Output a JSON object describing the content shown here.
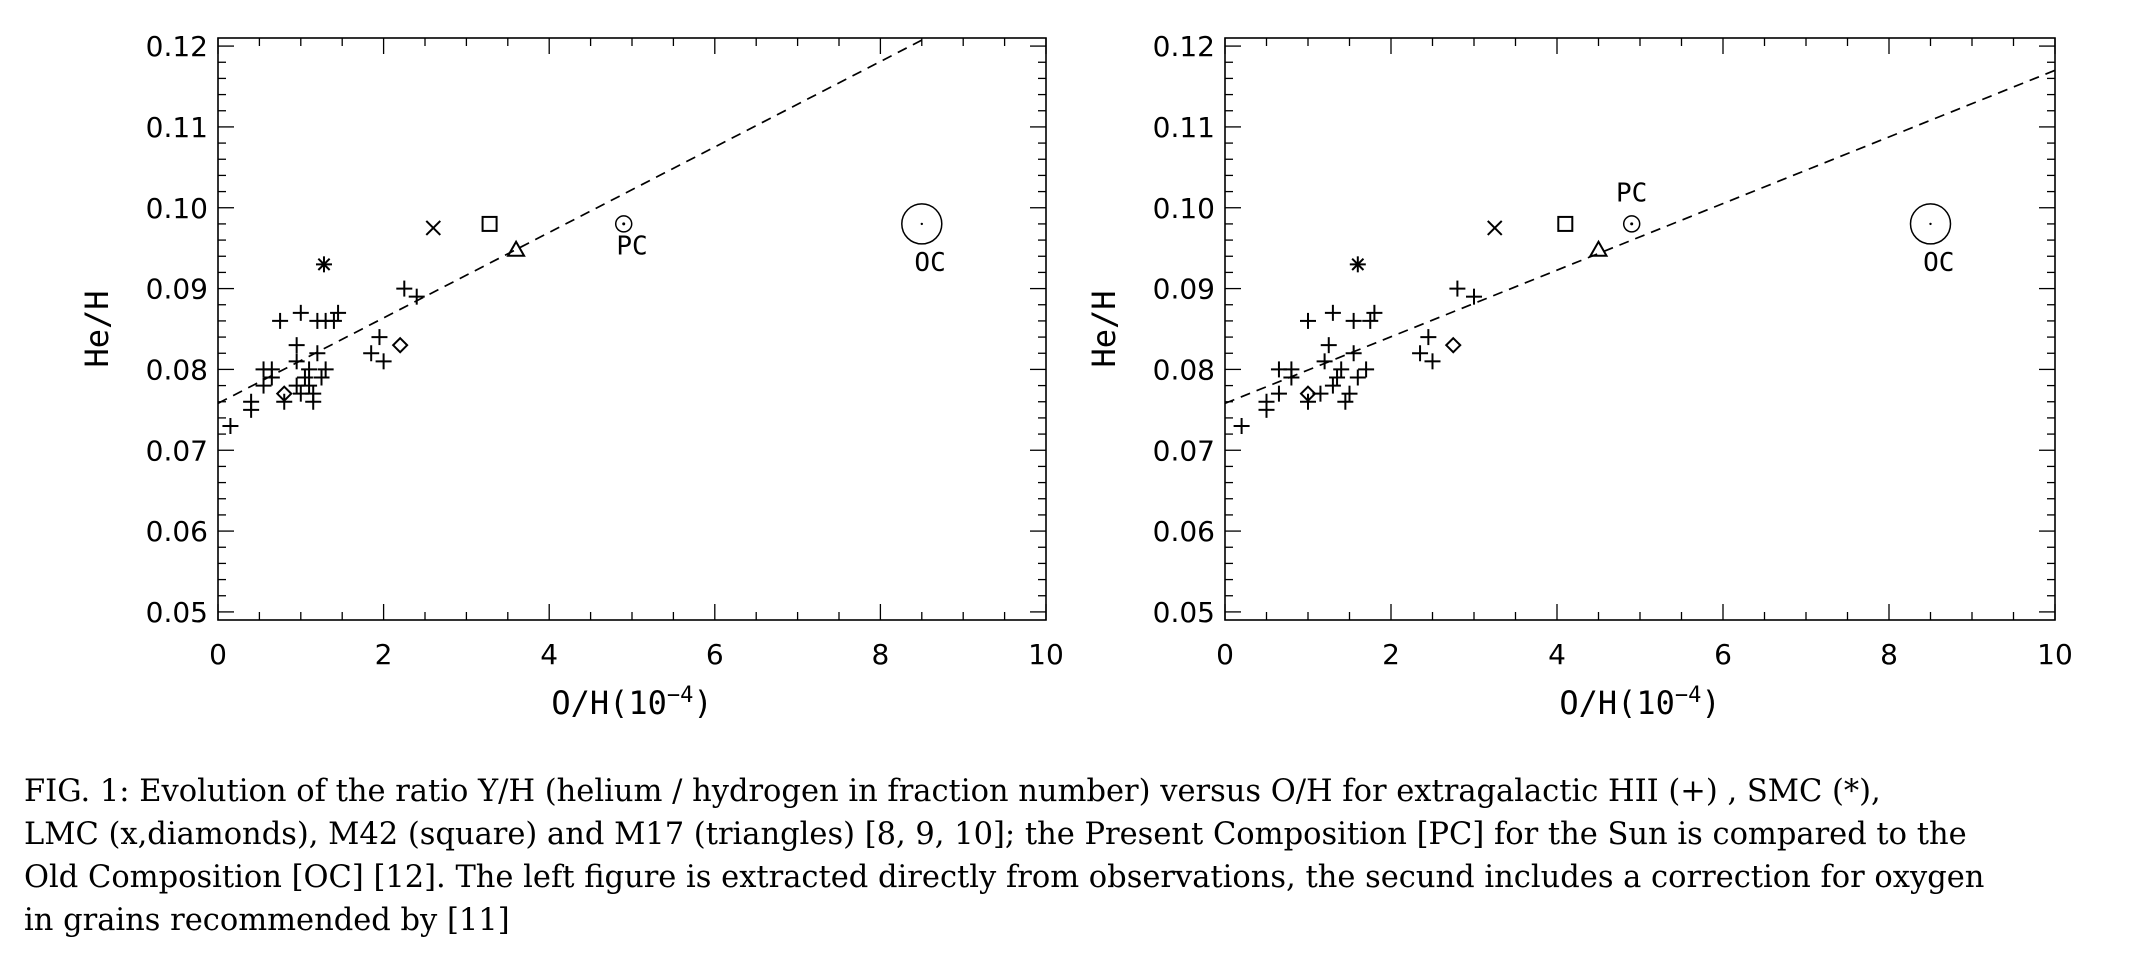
{
  "chart_data": [
    {
      "type": "scatter",
      "panel": "left",
      "xlabel_prefix": "O/H(10",
      "xlabel_exp": "−4",
      "xlabel_suffix": ")",
      "ylabel": "He/H",
      "xlim": [
        0,
        10
      ],
      "ylim": [
        0.049,
        0.121
      ],
      "xticks": [
        "0",
        "2",
        "4",
        "6",
        "8",
        "10"
      ],
      "yticks": [
        "0.05",
        "0.06",
        "0.07",
        "0.08",
        "0.09",
        "0.10",
        "0.11",
        "0.12"
      ],
      "fit_line": {
        "style": "dashed",
        "points": [
          [
            0,
            0.0758
          ],
          [
            8.55,
            0.121
          ]
        ]
      },
      "series": [
        {
          "name": "extragalactic HII",
          "marker": "plus",
          "points": [
            [
              0.15,
              0.073
            ],
            [
              0.4,
              0.075
            ],
            [
              0.4,
              0.076
            ],
            [
              0.55,
              0.078
            ],
            [
              0.55,
              0.08
            ],
            [
              0.65,
              0.079
            ],
            [
              0.65,
              0.08
            ],
            [
              0.75,
              0.086
            ],
            [
              0.8,
              0.076
            ],
            [
              0.95,
              0.078
            ],
            [
              0.95,
              0.081
            ],
            [
              0.95,
              0.083
            ],
            [
              1.0,
              0.087
            ],
            [
              1.0,
              0.077
            ],
            [
              1.05,
              0.079
            ],
            [
              1.1,
              0.08
            ],
            [
              1.1,
              0.078
            ],
            [
              1.15,
              0.076
            ],
            [
              1.15,
              0.077
            ],
            [
              1.2,
              0.082
            ],
            [
              1.2,
              0.086
            ],
            [
              1.25,
              0.079
            ],
            [
              1.3,
              0.08
            ],
            [
              1.3,
              0.086
            ],
            [
              1.4,
              0.086
            ],
            [
              1.45,
              0.087
            ],
            [
              1.85,
              0.082
            ],
            [
              1.95,
              0.084
            ],
            [
              2.0,
              0.081
            ],
            [
              2.25,
              0.09
            ],
            [
              2.4,
              0.089
            ]
          ]
        },
        {
          "name": "SMC",
          "marker": "asterisk",
          "points": [
            [
              1.28,
              0.093
            ]
          ]
        },
        {
          "name": "LMC x",
          "marker": "x",
          "points": [
            [
              2.6,
              0.0975
            ]
          ]
        },
        {
          "name": "LMC diamonds",
          "marker": "diamond",
          "points": [
            [
              0.8,
              0.077
            ],
            [
              2.2,
              0.083
            ]
          ]
        },
        {
          "name": "M42",
          "marker": "square",
          "points": [
            [
              3.28,
              0.098
            ]
          ]
        },
        {
          "name": "M17",
          "marker": "triangle",
          "points": [
            [
              3.6,
              0.0948
            ]
          ]
        },
        {
          "name": "PC",
          "marker": "sun-small",
          "points": [
            [
              4.9,
              0.098
            ]
          ]
        },
        {
          "name": "OC",
          "marker": "sun-large",
          "points": [
            [
              8.5,
              0.098
            ]
          ]
        }
      ],
      "annotations": [
        {
          "text": "PC",
          "x": 5.0,
          "y": 0.0942
        },
        {
          "text": "OC",
          "x": 8.6,
          "y": 0.0922
        }
      ]
    },
    {
      "type": "scatter",
      "panel": "right",
      "xlabel_prefix": "O/H(10",
      "xlabel_exp": "−4",
      "xlabel_suffix": ")",
      "ylabel": "He/H",
      "xlim": [
        0,
        10
      ],
      "ylim": [
        0.049,
        0.121
      ],
      "xticks": [
        "0",
        "2",
        "4",
        "6",
        "8",
        "10"
      ],
      "yticks": [
        "0.05",
        "0.06",
        "0.07",
        "0.08",
        "0.09",
        "0.10",
        "0.11",
        "0.12"
      ],
      "fit_line": {
        "style": "dashed",
        "points": [
          [
            0,
            0.0758
          ],
          [
            10,
            0.117
          ]
        ]
      },
      "series": [
        {
          "name": "extragalactic HII",
          "marker": "plus",
          "points": [
            [
              0.2,
              0.073
            ],
            [
              0.5,
              0.075
            ],
            [
              0.5,
              0.076
            ],
            [
              0.65,
              0.077
            ],
            [
              0.65,
              0.08
            ],
            [
              0.8,
              0.079
            ],
            [
              0.8,
              0.08
            ],
            [
              1.0,
              0.086
            ],
            [
              1.0,
              0.076
            ],
            [
              1.15,
              0.077
            ],
            [
              1.2,
              0.081
            ],
            [
              1.25,
              0.083
            ],
            [
              1.3,
              0.087
            ],
            [
              1.3,
              0.078
            ],
            [
              1.35,
              0.079
            ],
            [
              1.4,
              0.08
            ],
            [
              1.45,
              0.076
            ],
            [
              1.5,
              0.077
            ],
            [
              1.55,
              0.082
            ],
            [
              1.55,
              0.086
            ],
            [
              1.6,
              0.079
            ],
            [
              1.7,
              0.08
            ],
            [
              1.75,
              0.086
            ],
            [
              1.8,
              0.087
            ],
            [
              2.35,
              0.082
            ],
            [
              2.45,
              0.084
            ],
            [
              2.5,
              0.081
            ],
            [
              2.8,
              0.09
            ],
            [
              3.0,
              0.089
            ]
          ]
        },
        {
          "name": "SMC",
          "marker": "asterisk",
          "points": [
            [
              1.6,
              0.093
            ]
          ]
        },
        {
          "name": "LMC x",
          "marker": "x",
          "points": [
            [
              3.25,
              0.0975
            ]
          ]
        },
        {
          "name": "LMC diamonds",
          "marker": "diamond",
          "points": [
            [
              1.0,
              0.077
            ],
            [
              2.75,
              0.083
            ]
          ]
        },
        {
          "name": "M42",
          "marker": "square",
          "points": [
            [
              4.1,
              0.098
            ]
          ]
        },
        {
          "name": "M17",
          "marker": "triangle",
          "points": [
            [
              4.5,
              0.0948
            ]
          ]
        },
        {
          "name": "PC",
          "marker": "sun-small",
          "points": [
            [
              4.9,
              0.098
            ]
          ]
        },
        {
          "name": "OC",
          "marker": "sun-large",
          "points": [
            [
              8.5,
              0.098
            ]
          ]
        }
      ],
      "annotations": [
        {
          "text": "PC",
          "x": 4.9,
          "y": 0.1008
        },
        {
          "text": "OC",
          "x": 8.6,
          "y": 0.0922
        }
      ]
    }
  ],
  "caption": {
    "lines": [
      "FIG. 1: Evolution of the ratio Y/H (helium / hydrogen in fraction number) versus O/H for extragalactic HII (+) , SMC (*),",
      "LMC (x,diamonds), M42 (square) and M17 (triangles) [8, 9, 10]; the Present Composition [PC] for the Sun is compared to the",
      "Old Composition [OC] [12]. The left figure is extracted directly from observations, the secund includes a correction for oxygen",
      "in grains recommended by [11]"
    ]
  }
}
